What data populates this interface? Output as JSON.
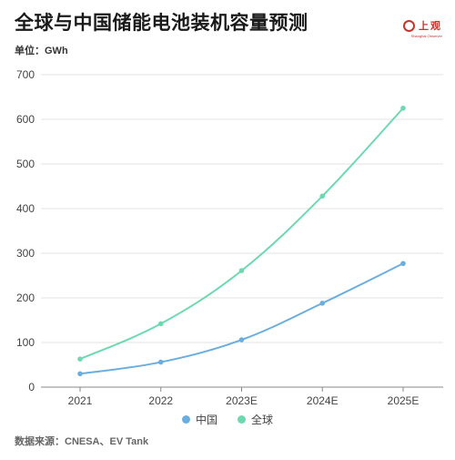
{
  "title": "全球与中国储能电池装机容量预测",
  "unit": "单位：GWh",
  "logo": {
    "text": "上观",
    "sub": "Shanghai Observer",
    "color": "#c8342b"
  },
  "source": "数据来源：CNESA、EV Tank",
  "chart_data": {
    "type": "line",
    "categories": [
      "2021",
      "2022",
      "2023E",
      "2024E",
      "2025E"
    ],
    "series": [
      {
        "name": "中国",
        "color": "#6aaee0",
        "values": [
          30,
          56,
          106,
          188,
          277
        ]
      },
      {
        "name": "全球",
        "color": "#6dd9b0",
        "values": [
          63,
          142,
          261,
          428,
          625
        ]
      }
    ],
    "ylim": [
      0,
      700
    ],
    "yticks": [
      0,
      100,
      200,
      300,
      400,
      500,
      600,
      700
    ],
    "grid": true,
    "legend": "bottom"
  }
}
